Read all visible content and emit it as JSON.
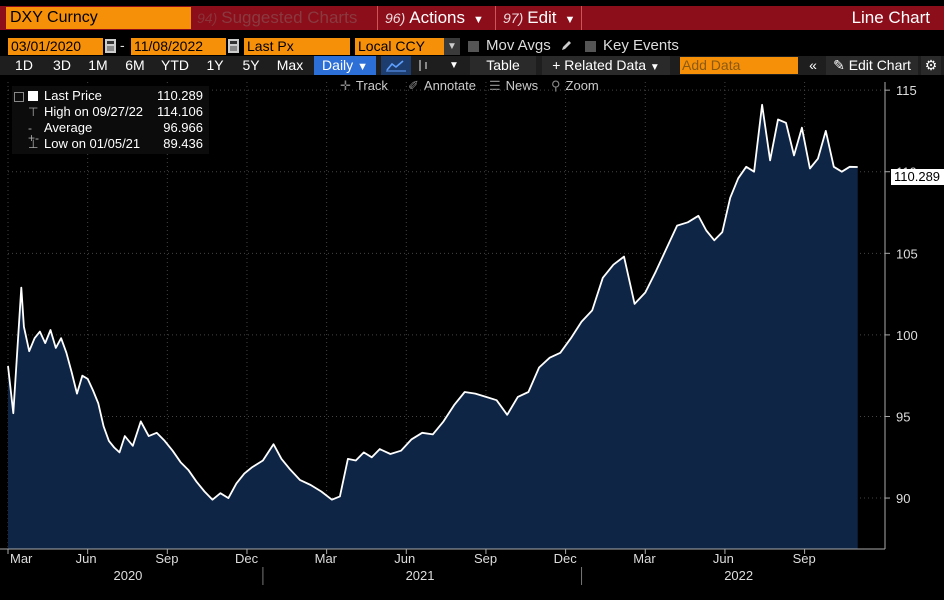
{
  "window": {
    "ticker": "DXY Curncy",
    "suggested_num": "94)",
    "suggested_label": "Suggested Charts",
    "actions_num": "96)",
    "actions_label": "Actions",
    "edit_num": "97)",
    "edit_label": "Edit",
    "chart_type": "Line Chart"
  },
  "params": {
    "start_date": "03/01/2020",
    "date_separator": "-",
    "end_date": "11/08/2022",
    "field": "Last Px",
    "currency": "Local CCY",
    "mov_avgs": "Mov Avgs",
    "key_events": "Key Events"
  },
  "periods": [
    "1D",
    "3D",
    "1M",
    "6M",
    "YTD",
    "1Y",
    "5Y",
    "Max"
  ],
  "toolbar": {
    "frequency": "Daily",
    "table": "Table",
    "related_data": "Related Data",
    "add_data_placeholder": "Add Data",
    "edit_chart": "Edit Chart"
  },
  "tools": {
    "track": "Track",
    "annotate": "Annotate",
    "news": "News",
    "zoom": "Zoom"
  },
  "legend": {
    "last_label": "Last Price",
    "last_value": "110.289",
    "high_label": "High on 09/27/22",
    "high_value": "114.106",
    "avg_label": "Average",
    "avg_value": "96.966",
    "low_label": "Low on 01/05/21",
    "low_value": "89.436"
  },
  "last_price_tag": "110.289",
  "colors": {
    "accent_orange": "#f79009",
    "title_bar": "#8c0e1a",
    "active_blue": "#2c6fd6",
    "area_fill": "#0f2545",
    "line": "#ffffff"
  },
  "chart_data": {
    "type": "area",
    "title": "DXY Curncy",
    "series": [
      {
        "name": "Last Price",
        "x_months": [
          0,
          0.2,
          0.5,
          0.6,
          0.8,
          1.0,
          1.2,
          1.4,
          1.6,
          1.8,
          2.0,
          2.2,
          2.4,
          2.6,
          2.8,
          3.0,
          3.2,
          3.4,
          3.6,
          3.8,
          4.0,
          4.2,
          4.4,
          4.7,
          5.0,
          5.3,
          5.6,
          5.9,
          6.2,
          6.5,
          6.8,
          7.1,
          7.4,
          7.7,
          8.0,
          8.3,
          8.6,
          8.9,
          9.2,
          9.6,
          10.0,
          10.3,
          10.6,
          11.0,
          11.4,
          11.8,
          12.2,
          12.5,
          12.8,
          13.1,
          13.4,
          13.7,
          14.0,
          14.4,
          14.8,
          15.2,
          15.6,
          16.0,
          16.4,
          16.8,
          17.2,
          17.6,
          18.0,
          18.4,
          18.8,
          19.2,
          19.6,
          20.0,
          20.4,
          20.8,
          21.2,
          21.6,
          22.0,
          22.4,
          22.8,
          23.2,
          23.6,
          24.0,
          24.4,
          24.8,
          25.2,
          25.6,
          26.0,
          26.3,
          26.6,
          26.9,
          27.2,
          27.5,
          27.8,
          28.1,
          28.4,
          28.7,
          29.0,
          29.3,
          29.6,
          29.9,
          30.2,
          30.5,
          30.8,
          31.1,
          31.4,
          31.7,
          32.0
        ],
        "values": [
          98.1,
          95.2,
          102.9,
          100.5,
          99.0,
          99.8,
          100.2,
          99.5,
          100.3,
          99.2,
          99.8,
          98.9,
          97.7,
          96.4,
          97.5,
          97.3,
          96.6,
          95.8,
          94.4,
          93.5,
          93.1,
          92.8,
          93.8,
          93.2,
          94.7,
          93.8,
          94.0,
          93.5,
          92.9,
          92.2,
          91.7,
          91.0,
          90.4,
          89.9,
          90.3,
          90.0,
          90.9,
          91.5,
          91.9,
          92.3,
          93.3,
          92.4,
          91.8,
          91.1,
          90.8,
          90.4,
          89.9,
          90.1,
          92.4,
          92.3,
          92.8,
          92.5,
          93.0,
          92.7,
          92.9,
          93.6,
          94.0,
          93.9,
          94.7,
          95.7,
          96.5,
          96.4,
          96.2,
          96.0,
          95.1,
          96.2,
          96.5,
          98.0,
          98.6,
          98.9,
          99.8,
          100.8,
          101.5,
          103.5,
          104.3,
          104.8,
          101.9,
          102.6,
          103.9,
          105.3,
          106.7,
          106.9,
          107.3,
          106.4,
          105.8,
          106.3,
          108.4,
          109.6,
          110.3,
          110.0,
          114.1,
          110.7,
          113.2,
          113.0,
          111.0,
          112.7,
          110.2,
          110.8,
          112.5,
          110.3,
          110.0,
          110.3,
          110.289
        ]
      }
    ],
    "y_ticks": [
      "90",
      "95",
      "100",
      "105",
      "110",
      "115"
    ],
    "ylim": [
      87,
      115.5
    ],
    "x_month_labels": [
      "Mar",
      "Jun",
      "Sep",
      "Dec",
      "Mar",
      "Jun",
      "Sep",
      "Dec",
      "Mar",
      "Jun",
      "Sep"
    ],
    "x_month_offsets": [
      0,
      3,
      6,
      9,
      12,
      15,
      18,
      21,
      24,
      27,
      30
    ],
    "x_year_labels": [
      "2020",
      "2021",
      "2022"
    ],
    "x_year_offsets": [
      4.5,
      15.5,
      27.5
    ],
    "xlim": [
      0,
      32.2
    ]
  }
}
